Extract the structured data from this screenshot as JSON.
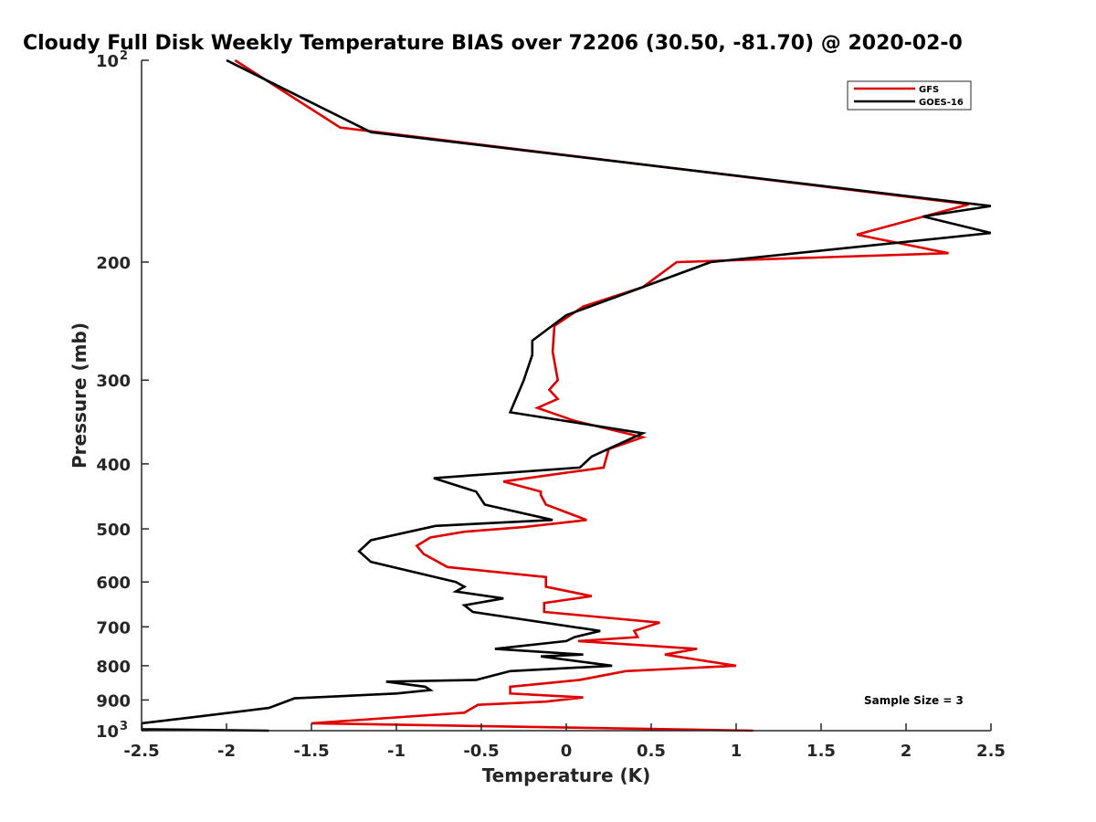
{
  "chart_data": {
    "type": "line",
    "title": "Cloudy Full Disk Weekly Temperature BIAS over 72206 (30.50, -81.70) @ 2020-02-0",
    "xlabel": "Temperature (K)",
    "ylabel": "Pressure (mb)",
    "xlim": [
      -2.5,
      2.5
    ],
    "ylim": [
      100,
      1000
    ],
    "yscale": "log",
    "y_reversed": true,
    "xticks": [
      "-2.5",
      "-2",
      "-1.5",
      "-1",
      "-0.5",
      "0",
      "0.5",
      "1",
      "1.5",
      "2",
      "2.5"
    ],
    "xtick_values": [
      -2.5,
      -2,
      -1.5,
      -1,
      -0.5,
      0,
      0.5,
      1,
      1.5,
      2,
      2.5
    ],
    "yticks": [
      {
        "value": 100,
        "label": "10",
        "exp": "2"
      },
      {
        "value": 200,
        "label": "200"
      },
      {
        "value": 300,
        "label": "300"
      },
      {
        "value": 400,
        "label": "400"
      },
      {
        "value": 500,
        "label": "500"
      },
      {
        "value": 600,
        "label": "600"
      },
      {
        "value": 700,
        "label": "700"
      },
      {
        "value": 800,
        "label": "800"
      },
      {
        "value": 900,
        "label": "900"
      },
      {
        "value": 1000,
        "label": "10",
        "exp": "3"
      }
    ],
    "legend_position": "top-right",
    "series": [
      {
        "name": "GFS",
        "color": "#e00000",
        "x": [
          -1.95,
          -1.33,
          2.37,
          1.71,
          2.25,
          0.65,
          0.45,
          0.1,
          -0.07,
          -0.08,
          -0.05,
          -0.1,
          -0.05,
          -0.17,
          0.05,
          0.45,
          0.25,
          0.22,
          -0.37,
          -0.15,
          -0.15,
          -0.12,
          0.12,
          -0.25,
          -0.6,
          -0.8,
          -0.88,
          -0.84,
          -0.7,
          -0.12,
          -0.12,
          0.15,
          -0.13,
          -0.13,
          0.55,
          0.4,
          0.42,
          0.07,
          0.77,
          0.58,
          1.0,
          0.35,
          0.08,
          -0.33,
          -0.33,
          0.1,
          -0.12,
          -0.52,
          -0.6,
          -1.5,
          1.1
        ],
        "y": [
          100,
          126,
          164,
          182,
          194,
          200,
          218,
          233,
          249,
          272,
          300,
          310,
          320,
          330,
          345,
          365,
          380,
          405,
          425,
          440,
          445,
          460,
          485,
          497,
          505,
          515,
          530,
          545,
          570,
          590,
          610,
          630,
          645,
          665,
          690,
          710,
          725,
          735,
          755,
          770,
          800,
          815,
          840,
          860,
          880,
          892,
          905,
          915,
          940,
          975,
          1000
        ]
      },
      {
        "name": "GOES-16",
        "color": "#000000",
        "x": [
          -2.0,
          -1.15,
          2.5,
          2.1,
          2.5,
          0.85,
          0.45,
          0.0,
          -0.2,
          -0.2,
          -0.25,
          -0.33,
          0.45,
          0.15,
          0.08,
          -0.78,
          -0.53,
          -0.48,
          -0.08,
          -0.77,
          -1.15,
          -1.22,
          -1.15,
          -0.65,
          -0.6,
          -0.65,
          -0.37,
          -0.6,
          -0.55,
          0.2,
          0.05,
          0.0,
          -0.42,
          0.1,
          -0.15,
          0.27,
          -0.33,
          -0.53,
          -1.06,
          -0.83,
          -0.8,
          -1.0,
          -1.6,
          -1.75,
          -2.2,
          -2.5,
          -2.5,
          -1.75
        ],
        "y": [
          100,
          128,
          165,
          171,
          181,
          200,
          218,
          240,
          262,
          275,
          300,
          335,
          360,
          390,
          405,
          420,
          440,
          460,
          485,
          495,
          520,
          540,
          560,
          600,
          610,
          620,
          635,
          650,
          665,
          710,
          725,
          735,
          755,
          770,
          775,
          800,
          815,
          840,
          845,
          860,
          870,
          880,
          895,
          925,
          955,
          975,
          995,
          1000
        ]
      }
    ],
    "annotations": [
      "Sample Size = 3"
    ]
  }
}
